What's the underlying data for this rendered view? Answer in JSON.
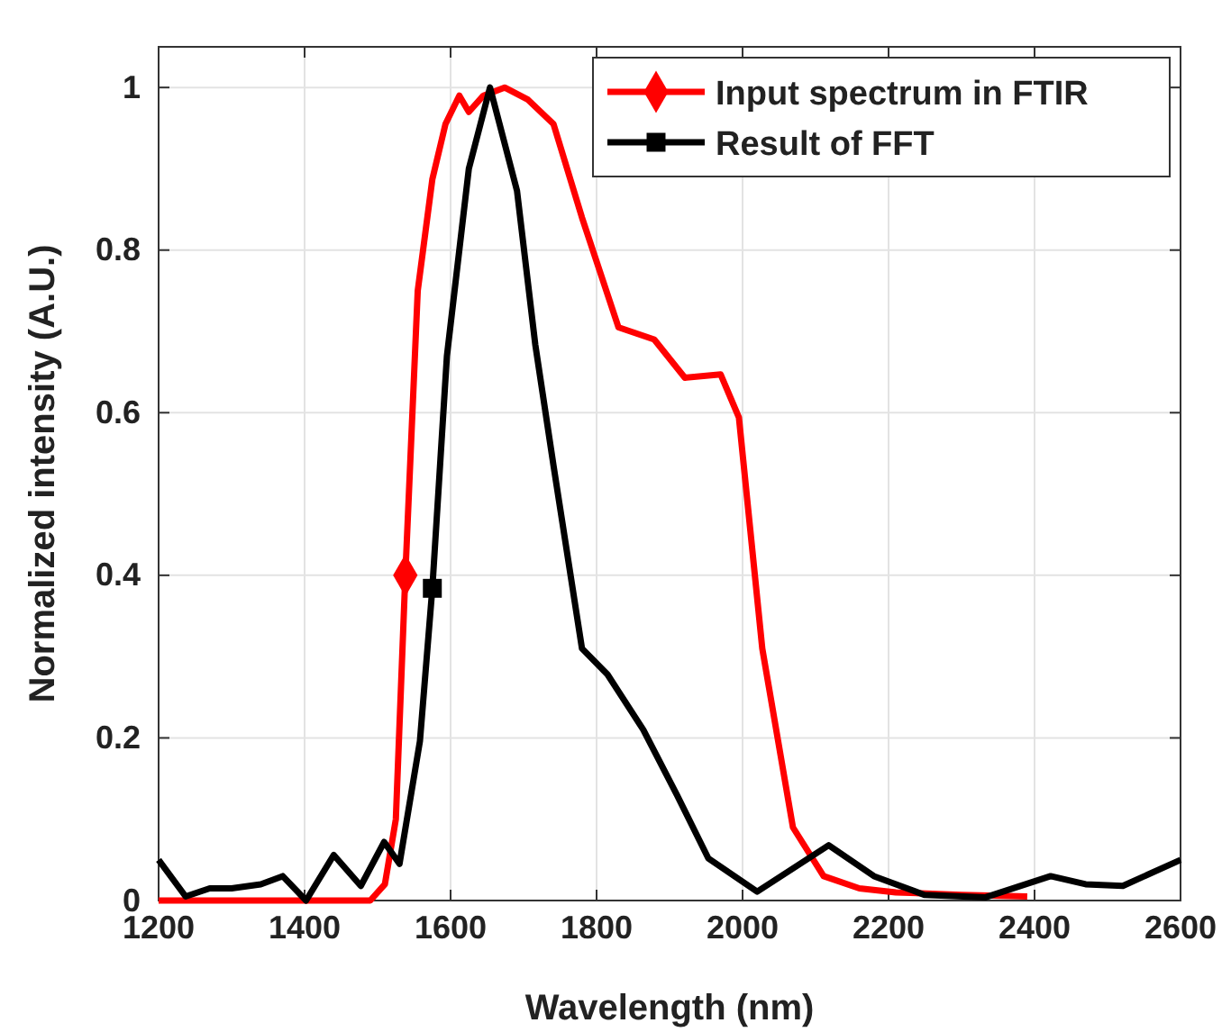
{
  "chart_data": {
    "type": "line",
    "xlabel": "Wavelength (nm)",
    "ylabel": "Normalized intensity (A.U.)",
    "xlim": [
      1200,
      2600
    ],
    "xticks": [
      1200,
      1400,
      1600,
      1800,
      2000,
      2200,
      2400,
      2600
    ],
    "ylim": [
      0,
      1.05
    ],
    "yticks": [
      0,
      0.2,
      0.4,
      0.6,
      0.8,
      1
    ],
    "grid": true,
    "legend": "top right",
    "series": [
      {
        "name": "Input spectrum in FTIR",
        "color": "#ff0000",
        "x": [
          1200,
          1300,
          1400,
          1490,
          1510,
          1525,
          1538,
          1555,
          1575,
          1593,
          1612,
          1625,
          1645,
          1674,
          1706,
          1741,
          1780,
          1830,
          1879,
          1921,
          1970,
          1995,
          2027,
          2069,
          2111,
          2160,
          2210,
          2300,
          2390
        ],
        "values": [
          0,
          0,
          0,
          0,
          0.02,
          0.1,
          0.4,
          0.75,
          0.887,
          0.955,
          0.99,
          0.97,
          0.99,
          1,
          0.985,
          0.955,
          0.84,
          0.705,
          0.69,
          0.643,
          0.647,
          0.594,
          0.31,
          0.09,
          0.03,
          0.015,
          0.01,
          0.007,
          0.005
        ]
      },
      {
        "name": "Result of FFT",
        "color": "#000000",
        "x": [
          1200,
          1237,
          1270,
          1300,
          1340,
          1370,
          1402,
          1440,
          1477,
          1509,
          1530,
          1558,
          1575,
          1595,
          1625,
          1654,
          1691,
          1716,
          1741,
          1780,
          1815,
          1864,
          1910,
          1953,
          2020,
          2070,
          2118,
          2180,
          2249,
          2333,
          2422,
          2470,
          2521,
          2600
        ],
        "values": [
          0.05,
          0.005,
          0.015,
          0.015,
          0.02,
          0.03,
          0,
          0.056,
          0.018,
          0.072,
          0.045,
          0.196,
          0.384,
          0.67,
          0.9,
          1,
          0.873,
          0.684,
          0.535,
          0.31,
          0.278,
          0.21,
          0.13,
          0.052,
          0.011,
          0.04,
          0.068,
          0.03,
          0.007,
          0.004,
          0.03,
          0.02,
          0.018,
          0.05
        ]
      },
      {
        "type": "scatter",
        "color": "#ff0000",
        "marker": "diamond",
        "x": [
          1538
        ],
        "values": [
          0.4
        ]
      },
      {
        "type": "scatter",
        "color": "#000000",
        "marker": "square",
        "x": [
          1575
        ],
        "values": [
          0.384
        ]
      }
    ]
  }
}
